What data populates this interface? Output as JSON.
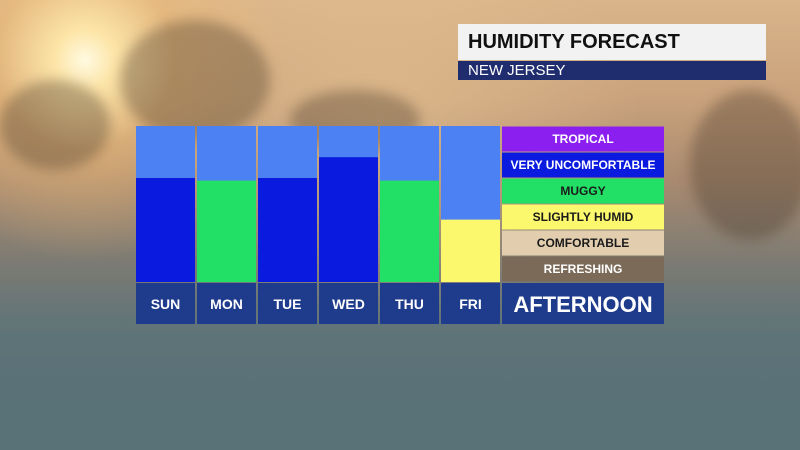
{
  "header": {
    "title": "HUMIDITY FORECAST",
    "region": "NEW JERSEY"
  },
  "chart_data": {
    "type": "bar",
    "categories": [
      "SUN",
      "MON",
      "TUE",
      "WED",
      "THU",
      "FRI"
    ],
    "values": [
      4,
      3.9,
      4,
      4.8,
      3.9,
      2.4
    ],
    "ylim": [
      0,
      6
    ],
    "period_label": "AFTERNOON",
    "levels": [
      {
        "label": "TROPICAL",
        "color": "#8b1ff0",
        "text_color": "#ffffff"
      },
      {
        "label": "VERY UNCOMFORTABLE",
        "color": "#0a1adf",
        "text_color": "#ffffff"
      },
      {
        "label": "MUGGY",
        "color": "#22e066",
        "text_color": "#1a1a1a"
      },
      {
        "label": "SLIGHTLY HUMID",
        "color": "#fbf86e",
        "text_color": "#1a1a1a"
      },
      {
        "label": "COMFORTABLE",
        "color": "#e2ceae",
        "text_color": "#1a1a1a"
      },
      {
        "label": "REFRESHING",
        "color": "#7b6a58",
        "text_color": "#ffffff"
      }
    ],
    "bar_colors": [
      "#0a1adf",
      "#22e066",
      "#0a1adf",
      "#0a1adf",
      "#22e066",
      "#fbf86e"
    ],
    "column_bg": "#4b81f2",
    "label_bg": "#1f3b8c"
  }
}
